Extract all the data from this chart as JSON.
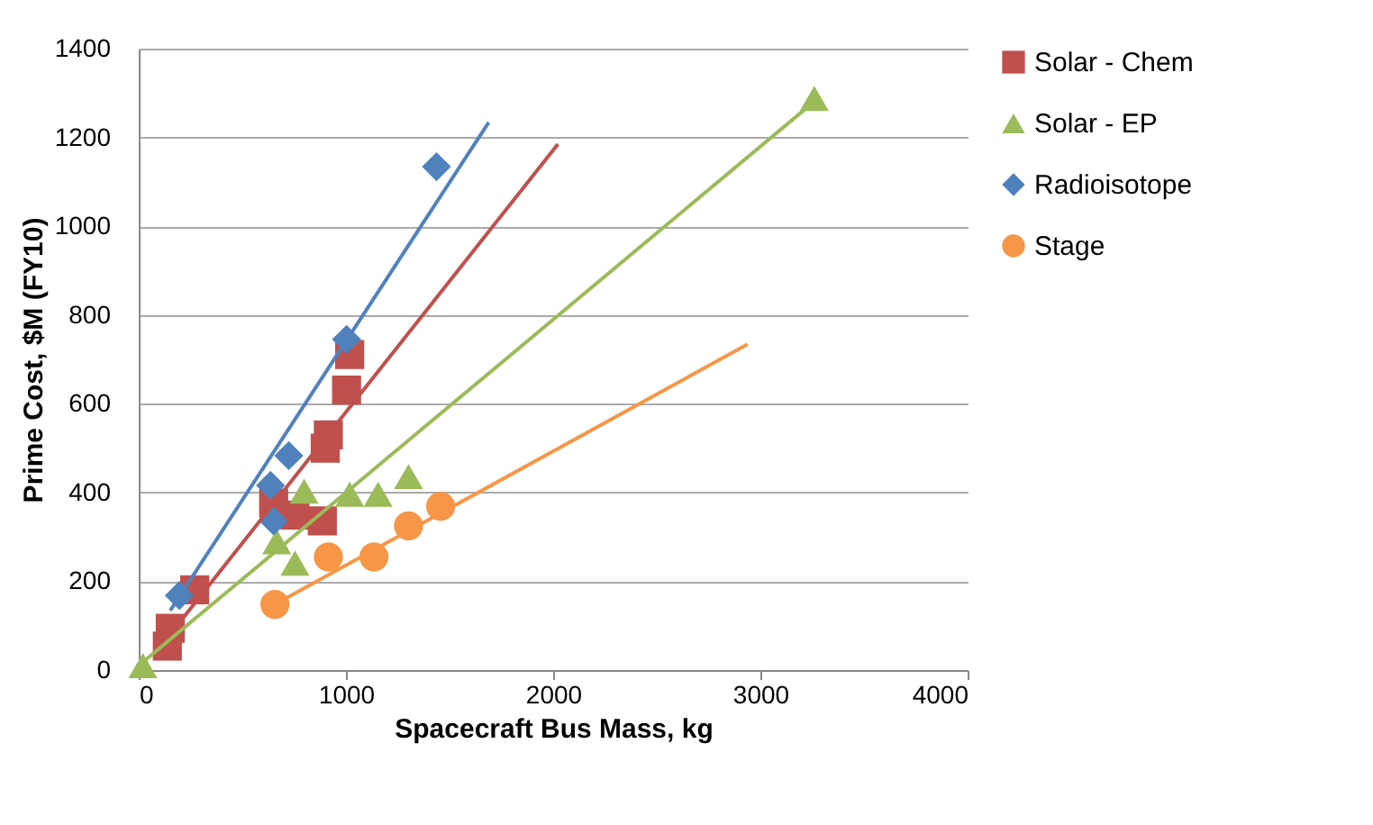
{
  "chart_data": {
    "type": "scatter",
    "xlabel": "Spacecraft Bus Mass, kg",
    "ylabel": "Prime Cost, $M (FY10)",
    "xlim": [
      0,
      4000
    ],
    "xticks": [
      0,
      1000,
      2000,
      3000,
      4000
    ],
    "ylim": [
      0,
      1400
    ],
    "yticks": [
      0,
      200,
      400,
      600,
      800,
      1000,
      1200,
      1400
    ],
    "grid": "y",
    "legend": "right",
    "series": [
      {
        "name": "Solar - Chem",
        "color": "#c0504d",
        "marker": "square",
        "x": [
          138,
          152,
          270,
          651,
          754,
          886,
          900,
          915,
          1003,
          1018
        ],
        "values": [
          54,
          94,
          181,
          376,
          349,
          336,
          500,
          530,
          631,
          711
        ]
      },
      {
        "name": "Solar - EP",
        "color": "#9bbb59",
        "marker": "triangle",
        "x": [
          20,
          666,
          754,
          798,
          1018,
          1155,
          1302,
          3260
        ],
        "values": [
          10,
          289,
          241,
          403,
          396,
          396,
          436,
          1288
        ]
      },
      {
        "name": "Radioisotope",
        "color": "#4f81bd",
        "marker": "diamond",
        "x": [
          196,
          636,
          651,
          724,
          1003,
          1437
        ],
        "values": [
          168,
          416,
          336,
          483,
          745,
          1134
        ]
      },
      {
        "name": "Stage",
        "color": "#f79646",
        "marker": "circle",
        "x": [
          657,
          915,
          1135,
          1302,
          1457
        ],
        "values": [
          148,
          255,
          255,
          325,
          369
        ]
      },
      {
        "type": "line",
        "color": "#c0504d",
        "line_style": "solid",
        "x": [
          100,
          2023
        ],
        "values": [
          50,
          1185
        ]
      },
      {
        "type": "line",
        "color": "#9bbb59",
        "line_style": "solid",
        "x": [
          0,
          3245
        ],
        "values": [
          10,
          1275
        ]
      },
      {
        "type": "line",
        "color": "#4f81bd",
        "line_style": "solid",
        "x": [
          152,
          1689
        ],
        "values": [
          134,
          1234
        ]
      },
      {
        "type": "line",
        "color": "#f79646",
        "line_style": "solid",
        "x": [
          657,
          2938
        ],
        "values": [
          148,
          734
        ]
      }
    ]
  }
}
